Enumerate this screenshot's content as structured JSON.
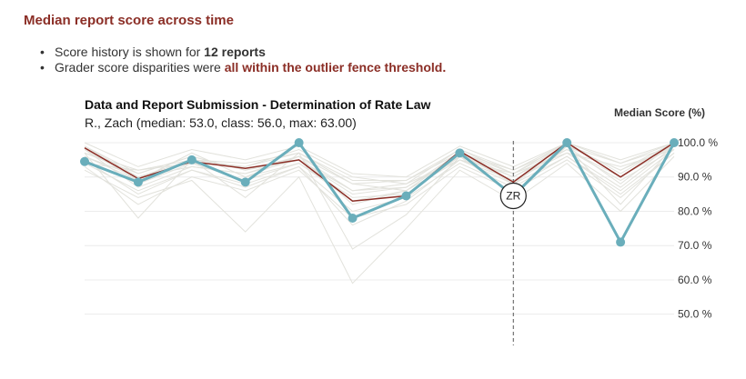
{
  "header": {
    "title": "Median report score across time"
  },
  "bullets": [
    {
      "prefix": "Score history is shown for ",
      "emphasis": "12 reports",
      "suffix": ""
    },
    {
      "prefix": "Grader score disparities were ",
      "emphasis": "all within the outlier fence threshold.",
      "suffix": ""
    }
  ],
  "colors": {
    "accent": "#8b2e26",
    "student": "#6aaebb",
    "median": "#8b2e26",
    "class_background": "#e2e2dc",
    "grid": "#ececec",
    "marker_line": "#555555"
  },
  "chart_data": {
    "type": "line",
    "title": "Data and Report Submission - Determination of Rate Law",
    "subtitle": "R., Zach (median: 53.0, class: 56.0, max: 63.00)",
    "ylabel": "Median Score (%)",
    "ylim": [
      47,
      100
    ],
    "yticks": [
      100,
      90,
      80,
      70,
      60,
      50
    ],
    "ytick_labels": [
      "100.0 %",
      "90.0 %",
      "80.0 %",
      "70.0 %",
      "60.0 %",
      "50.0 %"
    ],
    "grid": true,
    "x": [
      1,
      2,
      3,
      4,
      5,
      6,
      7,
      8,
      9,
      10,
      11,
      12
    ],
    "highlight_index": 9,
    "highlight_label": "ZR",
    "series": [
      {
        "role": "student",
        "values": [
          94.5,
          88.5,
          95,
          88.5,
          100,
          78,
          84.5,
          97,
          84.5,
          100,
          71,
          100
        ]
      },
      {
        "role": "median",
        "values": [
          98.5,
          89.5,
          94.5,
          92.5,
          95,
          83,
          84.5,
          97.5,
          88.5,
          100,
          90,
          100
        ]
      }
    ],
    "class_series": [
      [
        97,
        91,
        96,
        92,
        96,
        86,
        87,
        97,
        90,
        99,
        92,
        99
      ],
      [
        99,
        90,
        95,
        94,
        97,
        88,
        89,
        98,
        92,
        100,
        94,
        100
      ],
      [
        96,
        89,
        97,
        90,
        94,
        84,
        85,
        96,
        89,
        98,
        90,
        99
      ],
      [
        94,
        92,
        94,
        93,
        98,
        90,
        88,
        95,
        91,
        97,
        93,
        98
      ],
      [
        98,
        87,
        93,
        91,
        96,
        82,
        86,
        97,
        88,
        99,
        88,
        100
      ],
      [
        95,
        85,
        92,
        88,
        93,
        80,
        84,
        94,
        87,
        96,
        86,
        98
      ],
      [
        100,
        93,
        98,
        95,
        99,
        91,
        90,
        99,
        93,
        100,
        95,
        100
      ],
      [
        93,
        82,
        90,
        86,
        92,
        78,
        82,
        93,
        86,
        95,
        84,
        97
      ],
      [
        97,
        78,
        95,
        84,
        97,
        69,
        79,
        96,
        85,
        99,
        82,
        99
      ],
      [
        92,
        84,
        89,
        74,
        90,
        59,
        75,
        92,
        83,
        94,
        80,
        96
      ],
      [
        99,
        91,
        96,
        92,
        95,
        86,
        88,
        98,
        91,
        100,
        91,
        100
      ],
      [
        95,
        88,
        94,
        89,
        94,
        83,
        86,
        95,
        89,
        97,
        87,
        99
      ],
      [
        96,
        90,
        93,
        91,
        95,
        85,
        87,
        96,
        90,
        98,
        89,
        98
      ],
      [
        98,
        89,
        97,
        90,
        96,
        88,
        86,
        97,
        92,
        99,
        92,
        100
      ],
      [
        94,
        86,
        92,
        87,
        93,
        76,
        83,
        95,
        88,
        96,
        85,
        97
      ],
      [
        97,
        92,
        95,
        93,
        97,
        89,
        89,
        97,
        91,
        99,
        94,
        99
      ]
    ]
  }
}
